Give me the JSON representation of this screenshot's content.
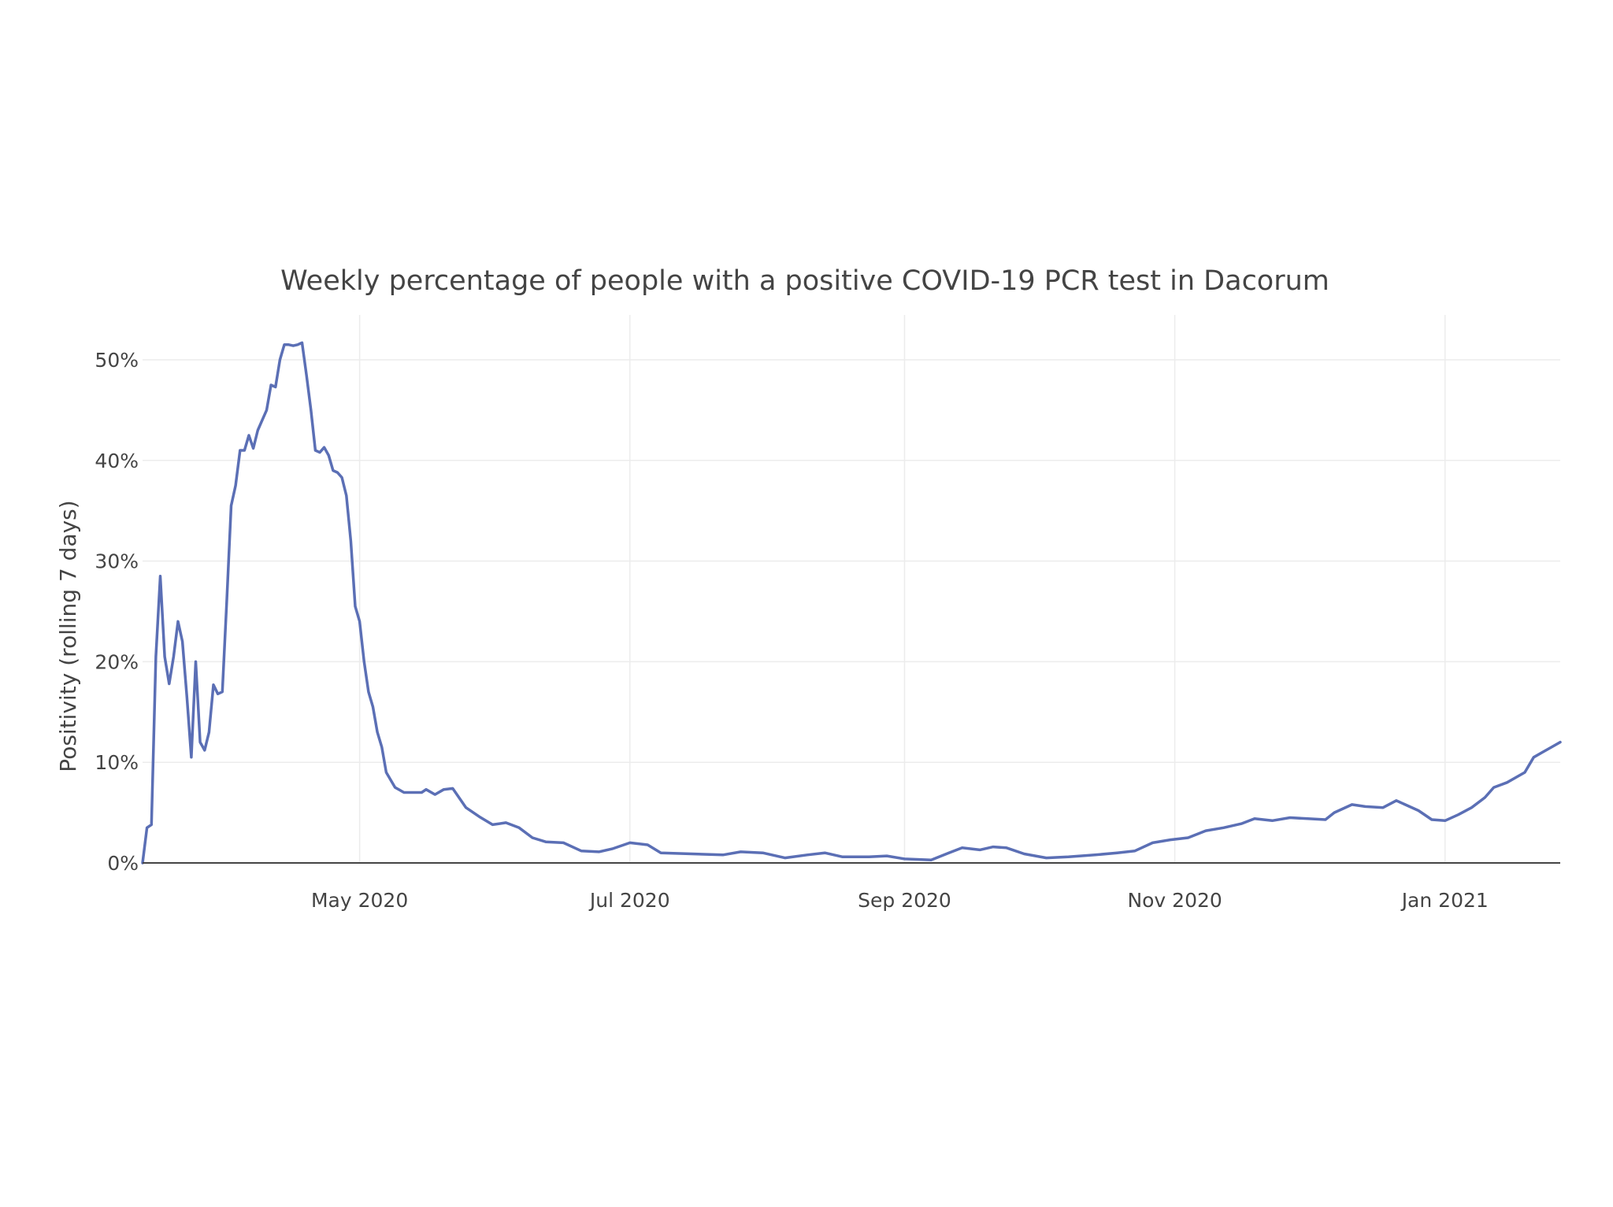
{
  "chart_data": {
    "type": "line",
    "title": "Weekly percentage of people with a positive COVID-19 PCR test in  Dacorum",
    "xlabel": "",
    "ylabel": "Positivity (rolling 7 days)",
    "x_ticks": [
      {
        "label": "May 2020",
        "date": "2020-05-01"
      },
      {
        "label": "Jul 2020",
        "date": "2020-07-01"
      },
      {
        "label": "Sep 2020",
        "date": "2020-09-01"
      },
      {
        "label": "Nov 2020",
        "date": "2020-11-01"
      },
      {
        "label": "Jan 2021",
        "date": "2021-01-01"
      }
    ],
    "y_ticks": [
      {
        "label": "0%",
        "value": 0
      },
      {
        "label": "10%",
        "value": 10
      },
      {
        "label": "20%",
        "value": 20
      },
      {
        "label": "30%",
        "value": 30
      },
      {
        "label": "40%",
        "value": 40
      },
      {
        "label": "50%",
        "value": 50
      }
    ],
    "xlim": [
      "2020-03-13",
      "2021-01-27"
    ],
    "ylim": [
      0,
      55
    ],
    "grid": true,
    "line_color": "#5b6fb5",
    "series": [
      {
        "values": [
          [
            "2020-03-13",
            0
          ],
          [
            "2020-03-14",
            3.5
          ],
          [
            "2020-03-15",
            3.8
          ],
          [
            "2020-03-16",
            20.5
          ],
          [
            "2020-03-17",
            28.5
          ],
          [
            "2020-03-18",
            20.5
          ],
          [
            "2020-03-19",
            17.8
          ],
          [
            "2020-03-20",
            20.5
          ],
          [
            "2020-03-21",
            24.0
          ],
          [
            "2020-03-22",
            22.0
          ],
          [
            "2020-03-23",
            16.5
          ],
          [
            "2020-03-24",
            10.5
          ],
          [
            "2020-03-25",
            20.0
          ],
          [
            "2020-03-26",
            12.0
          ],
          [
            "2020-03-27",
            11.2
          ],
          [
            "2020-03-28",
            13.0
          ],
          [
            "2020-03-29",
            17.7
          ],
          [
            "2020-03-30",
            16.8
          ],
          [
            "2020-03-31",
            17.0
          ],
          [
            "2020-04-01",
            26.0
          ],
          [
            "2020-04-02",
            35.5
          ],
          [
            "2020-04-03",
            37.5
          ],
          [
            "2020-04-04",
            41.0
          ],
          [
            "2020-04-05",
            41.0
          ],
          [
            "2020-04-06",
            42.5
          ],
          [
            "2020-04-07",
            41.2
          ],
          [
            "2020-04-08",
            43.0
          ],
          [
            "2020-04-09",
            44.0
          ],
          [
            "2020-04-10",
            45.0
          ],
          [
            "2020-04-11",
            47.5
          ],
          [
            "2020-04-12",
            47.3
          ],
          [
            "2020-04-13",
            50.0
          ],
          [
            "2020-04-14",
            51.5
          ],
          [
            "2020-04-15",
            51.5
          ],
          [
            "2020-04-16",
            51.4
          ],
          [
            "2020-04-17",
            51.5
          ],
          [
            "2020-04-18",
            51.7
          ],
          [
            "2020-04-19",
            48.5
          ],
          [
            "2020-04-20",
            45.0
          ],
          [
            "2020-04-21",
            41.0
          ],
          [
            "2020-04-22",
            40.8
          ],
          [
            "2020-04-23",
            41.3
          ],
          [
            "2020-04-24",
            40.5
          ],
          [
            "2020-04-25",
            39.0
          ],
          [
            "2020-04-26",
            38.8
          ],
          [
            "2020-04-27",
            38.3
          ],
          [
            "2020-04-28",
            36.5
          ],
          [
            "2020-04-29",
            32.0
          ],
          [
            "2020-04-30",
            25.5
          ],
          [
            "2020-05-01",
            24.0
          ],
          [
            "2020-05-02",
            20.0
          ],
          [
            "2020-05-03",
            17.0
          ],
          [
            "2020-05-04",
            15.5
          ],
          [
            "2020-05-05",
            13.0
          ],
          [
            "2020-05-06",
            11.5
          ],
          [
            "2020-05-07",
            9.0
          ],
          [
            "2020-05-09",
            7.5
          ],
          [
            "2020-05-11",
            7.0
          ],
          [
            "2020-05-15",
            7.0
          ],
          [
            "2020-05-16",
            7.3
          ],
          [
            "2020-05-18",
            6.8
          ],
          [
            "2020-05-20",
            7.3
          ],
          [
            "2020-05-22",
            7.4
          ],
          [
            "2020-05-25",
            5.5
          ],
          [
            "2020-05-28",
            4.6
          ],
          [
            "2020-05-31",
            3.8
          ],
          [
            "2020-06-03",
            4.0
          ],
          [
            "2020-06-06",
            3.5
          ],
          [
            "2020-06-09",
            2.5
          ],
          [
            "2020-06-12",
            2.1
          ],
          [
            "2020-06-16",
            2.0
          ],
          [
            "2020-06-20",
            1.2
          ],
          [
            "2020-06-24",
            1.1
          ],
          [
            "2020-06-27",
            1.4
          ],
          [
            "2020-07-01",
            2.0
          ],
          [
            "2020-07-05",
            1.8
          ],
          [
            "2020-07-08",
            1.0
          ],
          [
            "2020-07-15",
            0.9
          ],
          [
            "2020-07-22",
            0.8
          ],
          [
            "2020-07-26",
            1.1
          ],
          [
            "2020-07-31",
            1.0
          ],
          [
            "2020-08-05",
            0.5
          ],
          [
            "2020-08-10",
            0.8
          ],
          [
            "2020-08-14",
            1.0
          ],
          [
            "2020-08-18",
            0.6
          ],
          [
            "2020-08-24",
            0.6
          ],
          [
            "2020-08-28",
            0.7
          ],
          [
            "2020-09-01",
            0.4
          ],
          [
            "2020-09-07",
            0.3
          ],
          [
            "2020-09-11",
            1.0
          ],
          [
            "2020-09-14",
            1.5
          ],
          [
            "2020-09-18",
            1.3
          ],
          [
            "2020-09-21",
            1.6
          ],
          [
            "2020-09-24",
            1.5
          ],
          [
            "2020-09-28",
            0.9
          ],
          [
            "2020-10-03",
            0.5
          ],
          [
            "2020-10-08",
            0.6
          ],
          [
            "2020-10-14",
            0.8
          ],
          [
            "2020-10-19",
            1.0
          ],
          [
            "2020-10-23",
            1.2
          ],
          [
            "2020-10-27",
            2.0
          ],
          [
            "2020-10-31",
            2.3
          ],
          [
            "2020-11-04",
            2.5
          ],
          [
            "2020-11-08",
            3.2
          ],
          [
            "2020-11-12",
            3.5
          ],
          [
            "2020-11-16",
            3.9
          ],
          [
            "2020-11-19",
            4.4
          ],
          [
            "2020-11-23",
            4.2
          ],
          [
            "2020-11-27",
            4.5
          ],
          [
            "2020-12-01",
            4.4
          ],
          [
            "2020-12-05",
            4.3
          ],
          [
            "2020-12-07",
            5.0
          ],
          [
            "2020-12-11",
            5.8
          ],
          [
            "2020-12-14",
            5.6
          ],
          [
            "2020-12-18",
            5.5
          ],
          [
            "2020-12-21",
            6.2
          ],
          [
            "2020-12-23",
            5.8
          ],
          [
            "2020-12-26",
            5.2
          ],
          [
            "2020-12-29",
            4.3
          ],
          [
            "2021-01-01",
            4.2
          ],
          [
            "2021-01-04",
            4.8
          ],
          [
            "2021-01-07",
            5.5
          ],
          [
            "2021-01-10",
            6.5
          ],
          [
            "2021-01-12",
            7.5
          ],
          [
            "2021-01-15",
            8.0
          ],
          [
            "2021-01-17",
            8.5
          ],
          [
            "2021-01-19",
            9.0
          ],
          [
            "2021-01-21",
            10.5
          ],
          [
            "2021-01-23",
            11.0
          ],
          [
            "2021-01-25",
            11.5
          ],
          [
            "2021-01-27",
            12.0
          ]
        ]
      }
    ]
  }
}
